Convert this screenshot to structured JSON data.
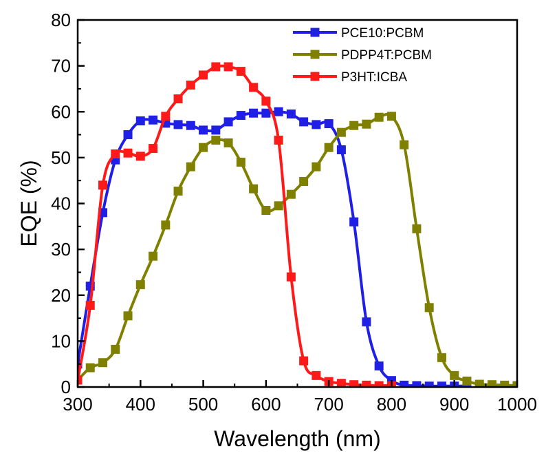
{
  "chart_data": {
    "type": "line",
    "xlabel": "Wavelength (nm)",
    "ylabel": "EQE (%)",
    "xlim": [
      300,
      1000
    ],
    "ylim": [
      0,
      80
    ],
    "xticks": [
      300,
      400,
      500,
      600,
      700,
      800,
      900,
      1000
    ],
    "yticks": [
      0,
      10,
      20,
      30,
      40,
      50,
      60,
      70,
      80
    ],
    "grid": false,
    "legend_position": "top-right",
    "series": [
      {
        "name": "PCE10:PCBM",
        "color": "#1f1fe6",
        "marker": "square",
        "x": [
          300,
          320,
          340,
          360,
          380,
          400,
          420,
          440,
          460,
          480,
          500,
          520,
          540,
          560,
          580,
          600,
          620,
          640,
          660,
          680,
          700,
          720,
          740,
          760,
          780,
          800,
          820,
          840,
          860,
          880,
          900,
          920
        ],
        "y": [
          5,
          22,
          38,
          49.5,
          55,
          58,
          58.2,
          57.5,
          57.2,
          57,
          56,
          56,
          57.8,
          59.2,
          59.7,
          59.7,
          60,
          59.5,
          57.8,
          57.2,
          57.4,
          51.7,
          36,
          14.2,
          4.6,
          1.4,
          0.4,
          0.3,
          0.2,
          0.2,
          0.2,
          0.2
        ]
      },
      {
        "name": "PDPP4T:PCBM",
        "color": "#808000",
        "marker": "square",
        "x": [
          300,
          320,
          340,
          360,
          380,
          400,
          420,
          440,
          460,
          480,
          500,
          520,
          540,
          560,
          580,
          600,
          620,
          640,
          660,
          680,
          700,
          720,
          740,
          760,
          780,
          800,
          820,
          840,
          860,
          880,
          900,
          920,
          940,
          960,
          980,
          1000
        ],
        "y": [
          1.5,
          4.2,
          5.3,
          8.2,
          15.5,
          22.3,
          28.5,
          35.3,
          42.7,
          48,
          52.2,
          53.8,
          53.2,
          49,
          43.2,
          38.5,
          39.5,
          42,
          44.8,
          48,
          52.2,
          55.5,
          57,
          57.3,
          58.8,
          59,
          52.8,
          34.5,
          17.3,
          6.4,
          2.5,
          1.3,
          0.6,
          0.5,
          0.4,
          0.3
        ]
      },
      {
        "name": "P3HT:ICBA",
        "color": "#ff1a1a",
        "marker": "square",
        "x": [
          300,
          320,
          340,
          360,
          380,
          400,
          420,
          440,
          460,
          480,
          500,
          520,
          540,
          560,
          580,
          600,
          620,
          640,
          660,
          680,
          700,
          720,
          740,
          760,
          780,
          800
        ],
        "y": [
          1.5,
          17.8,
          44,
          50.8,
          51,
          50.3,
          52,
          59,
          62.8,
          65.8,
          68,
          69.8,
          69.8,
          68.8,
          65.3,
          62.3,
          53.8,
          24,
          5.7,
          2.5,
          1.2,
          0.8,
          0.5,
          0.4,
          0.3,
          0.3
        ]
      }
    ]
  }
}
